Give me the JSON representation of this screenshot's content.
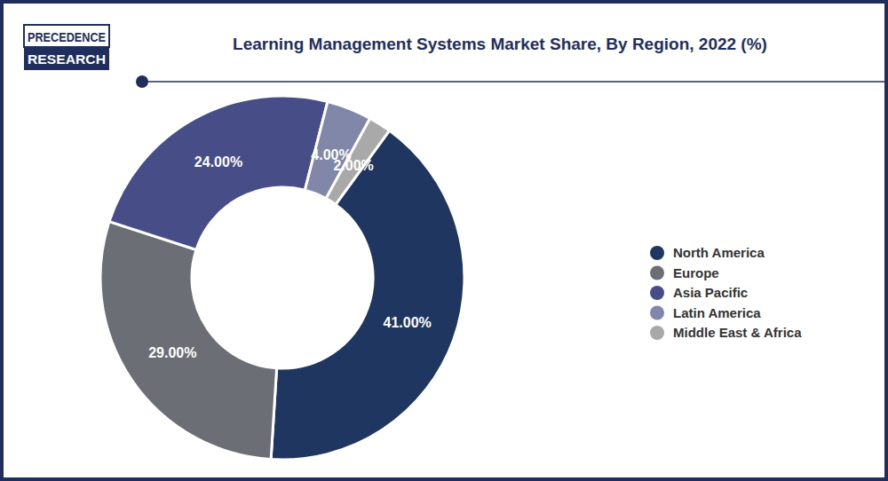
{
  "chart_data": {
    "type": "donut",
    "title": "Learning Management Systems Market Share, By Region, 2022 (%)",
    "annotations": [
      "PRECEDENCE",
      "RESEARCH"
    ],
    "categories": [
      "North America",
      "Europe",
      "Asia Pacific",
      "Latin America",
      "Middle East & Africa"
    ],
    "values": [
      41,
      29,
      24,
      4,
      2
    ],
    "value_labels": [
      "41.00%",
      "29.00%",
      "24.00%",
      "4.00%",
      "2.00%"
    ],
    "colors": [
      "#1f3660",
      "#6b6e75",
      "#464d87",
      "#8087a8",
      "#a9a9a9"
    ],
    "data_labels": true,
    "legend": "right"
  }
}
